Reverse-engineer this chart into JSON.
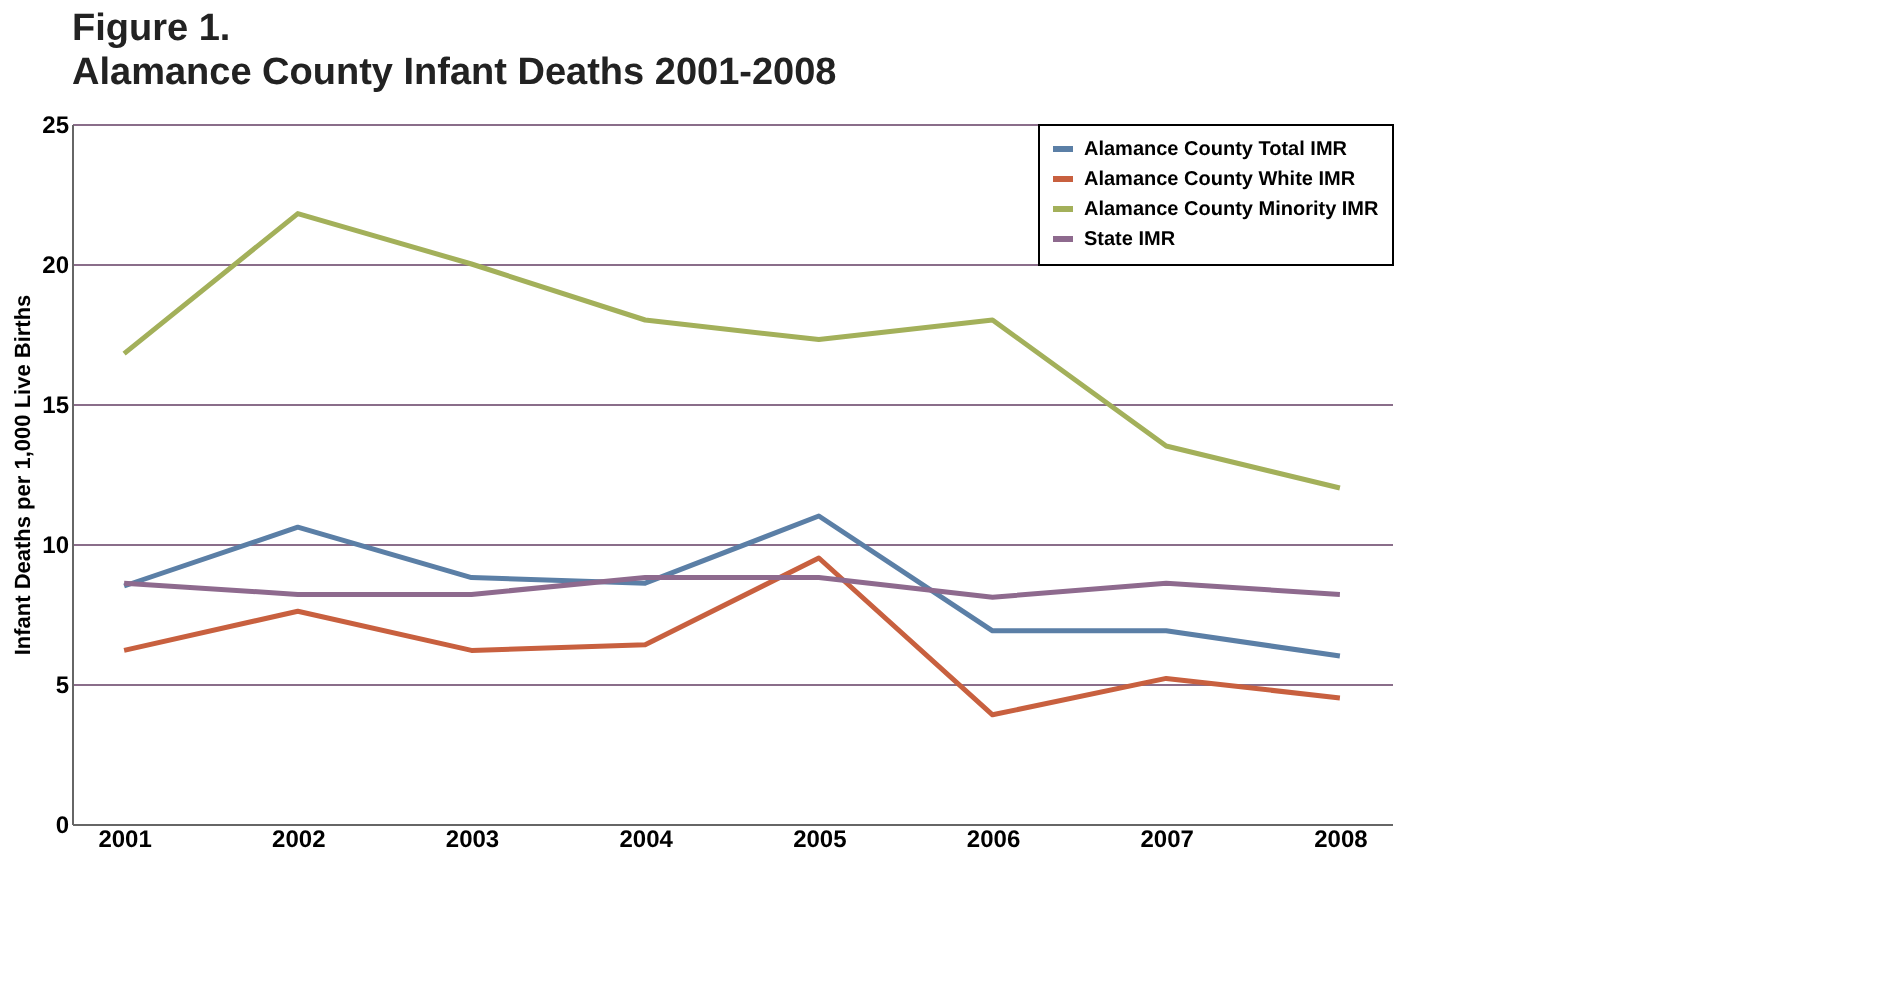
{
  "chart_data": {
    "type": "line",
    "title": "Figure 1.",
    "subtitle": "Alamance County Infant Deaths 2001-2008",
    "ylabel": "Infant Deaths per 1,000 Live Births",
    "categories": [
      "2001",
      "2002",
      "2003",
      "2004",
      "2005",
      "2006",
      "2007",
      "2008"
    ],
    "series": [
      {
        "name": "Alamance County Total IMR",
        "color": "#5b7fa6",
        "values": [
          8.5,
          10.6,
          8.8,
          8.6,
          11.0,
          6.9,
          6.9,
          6.0
        ]
      },
      {
        "name": "Alamance County White IMR",
        "color": "#c8603f",
        "values": [
          6.2,
          7.6,
          6.2,
          6.4,
          9.5,
          3.9,
          5.2,
          4.5
        ]
      },
      {
        "name": "Alamance County Minority IMR",
        "color": "#a3b05a",
        "values": [
          16.8,
          21.8,
          20.0,
          18.0,
          17.3,
          18.0,
          13.5,
          12.0
        ]
      },
      {
        "name": "State IMR",
        "color": "#8e6a8e",
        "values": [
          8.6,
          8.2,
          8.2,
          8.8,
          8.8,
          8.1,
          8.6,
          8.2
        ]
      }
    ],
    "ylim": [
      0,
      25
    ],
    "yticks": [
      0,
      5,
      10,
      15,
      20,
      25
    ],
    "grid": "y",
    "legend": "top right",
    "marker": "none",
    "line_style": "solid"
  }
}
